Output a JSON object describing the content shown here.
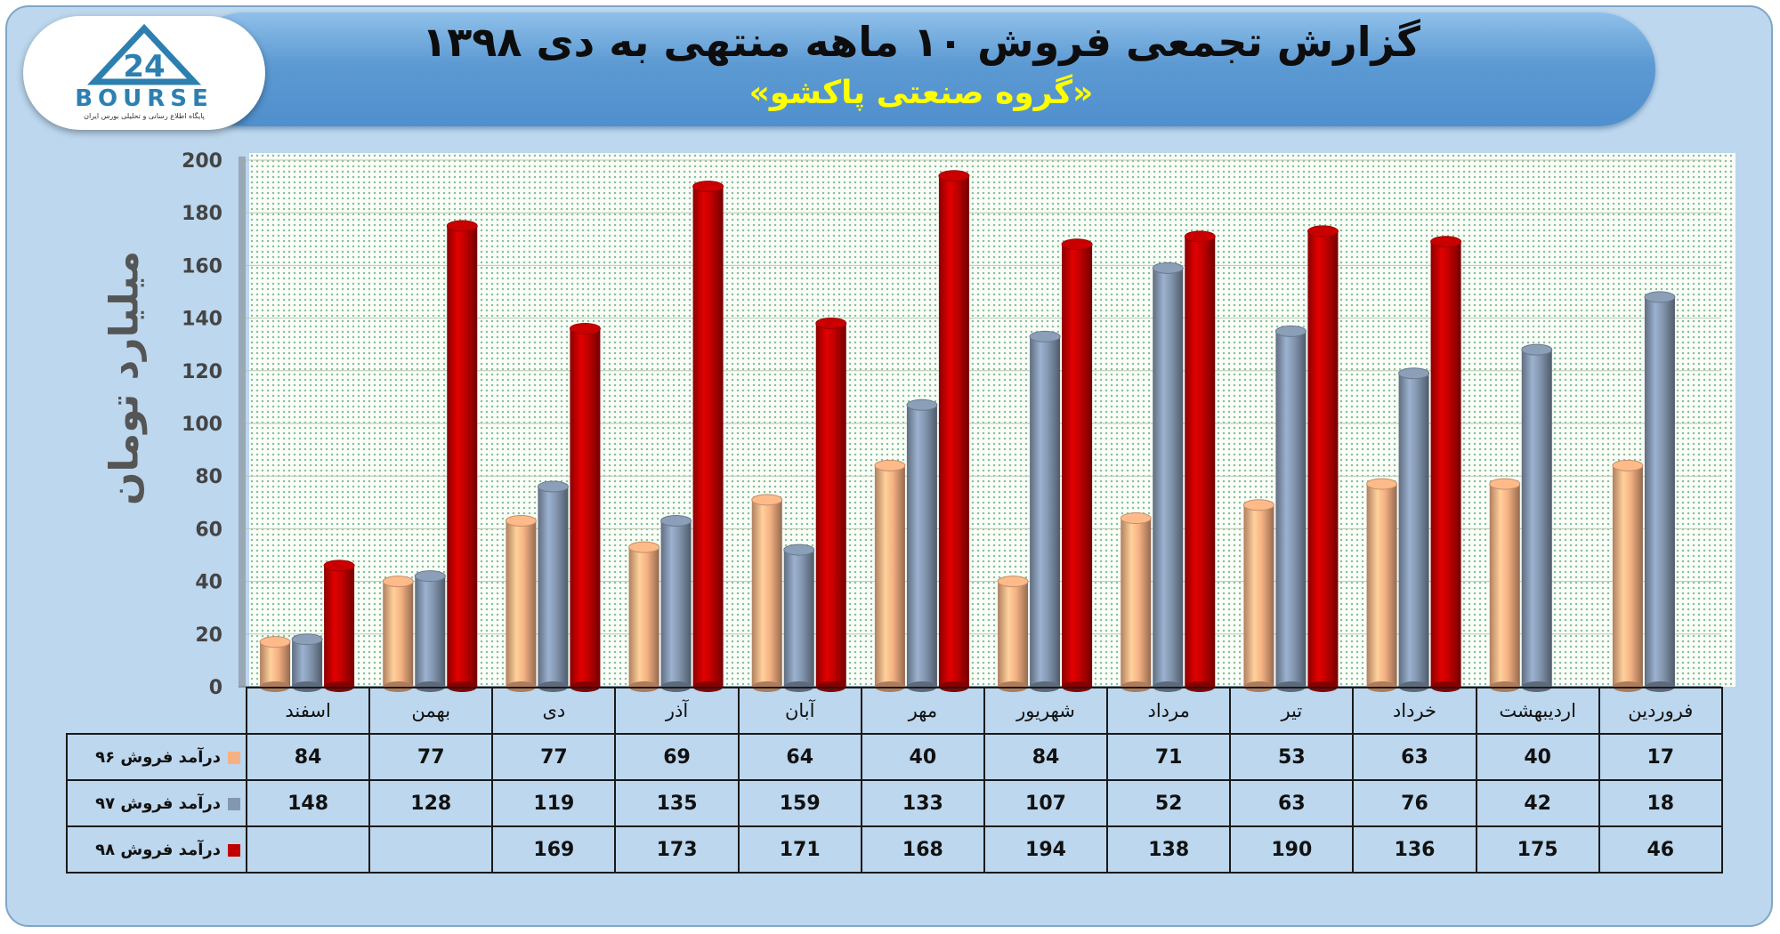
{
  "header": {
    "title": "گزارش تجمعی فروش ۱۰ ماهه منتهی به دی ۱۳۹۸",
    "subtitle": "«گروه صنعتی پاکشو»"
  },
  "logo": {
    "word": "BOURSE",
    "tagline": "پایگاه اطلاع رسانی و تحلیلی بورس ایران"
  },
  "colors": {
    "series_96": "#f5b183",
    "series_97": "#8497b0",
    "series_98": "#c00000"
  },
  "chart_data": {
    "type": "bar",
    "title": "گزارش تجمعی فروش ۱۰ ماهه منتهی به دی ۱۳۹۸",
    "subtitle": "«گروه صنعتی پاکشو»",
    "ylabel": "میلیارد تومان",
    "xlabel": "",
    "ylim": [
      0,
      200
    ],
    "yticks": [
      "0",
      "20",
      "40",
      "60",
      "80",
      "100",
      "120",
      "140",
      "160",
      "180",
      "200"
    ],
    "grid": true,
    "categories": [
      "فروردین",
      "اردیبهشت",
      "خرداد",
      "تیر",
      "مرداد",
      "شهریور",
      "مهر",
      "آبان",
      "آذر",
      "دی",
      "بهمن",
      "اسفند"
    ],
    "series": [
      {
        "name": "درآمد فروش ۹۶",
        "color": "#f5b183",
        "values": [
          17,
          40,
          63,
          53,
          71,
          84,
          40,
          64,
          69,
          77,
          77,
          84
        ]
      },
      {
        "name": "درآمد فروش ۹۷",
        "color": "#8497b0",
        "values": [
          18,
          42,
          76,
          63,
          52,
          107,
          133,
          159,
          135,
          119,
          128,
          148
        ]
      },
      {
        "name": "درآمد فروش ۹۸",
        "color": "#c00000",
        "values": [
          46,
          175,
          136,
          190,
          138,
          194,
          168,
          171,
          173,
          169,
          null,
          null
        ]
      }
    ]
  }
}
